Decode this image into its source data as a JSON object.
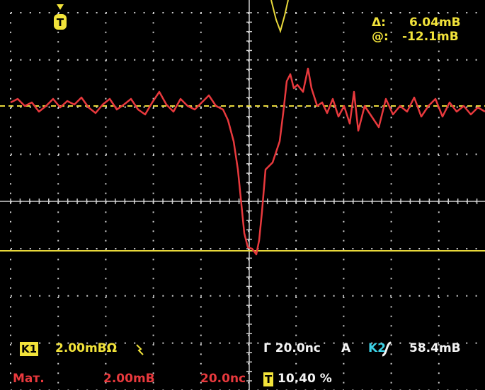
{
  "trigger_marker": "T",
  "cursor": {
    "delta_label": "Δ:",
    "delta_value": "6.04mB",
    "at_label": "@:",
    "at_value": "-12.1mB"
  },
  "status": {
    "ch1_label": "K1",
    "ch1_scale": "2.00mBΩ",
    "timebase": "Γ 20.0nc",
    "trigger_source": "A",
    "ch2_label": "K2",
    "trigger_level": "58.4mB"
  },
  "math": {
    "label": "Мат.",
    "scale": "2.00mB",
    "timebase": "20.0nc",
    "trigger_icon": "T",
    "position": "10.40 %"
  }
}
